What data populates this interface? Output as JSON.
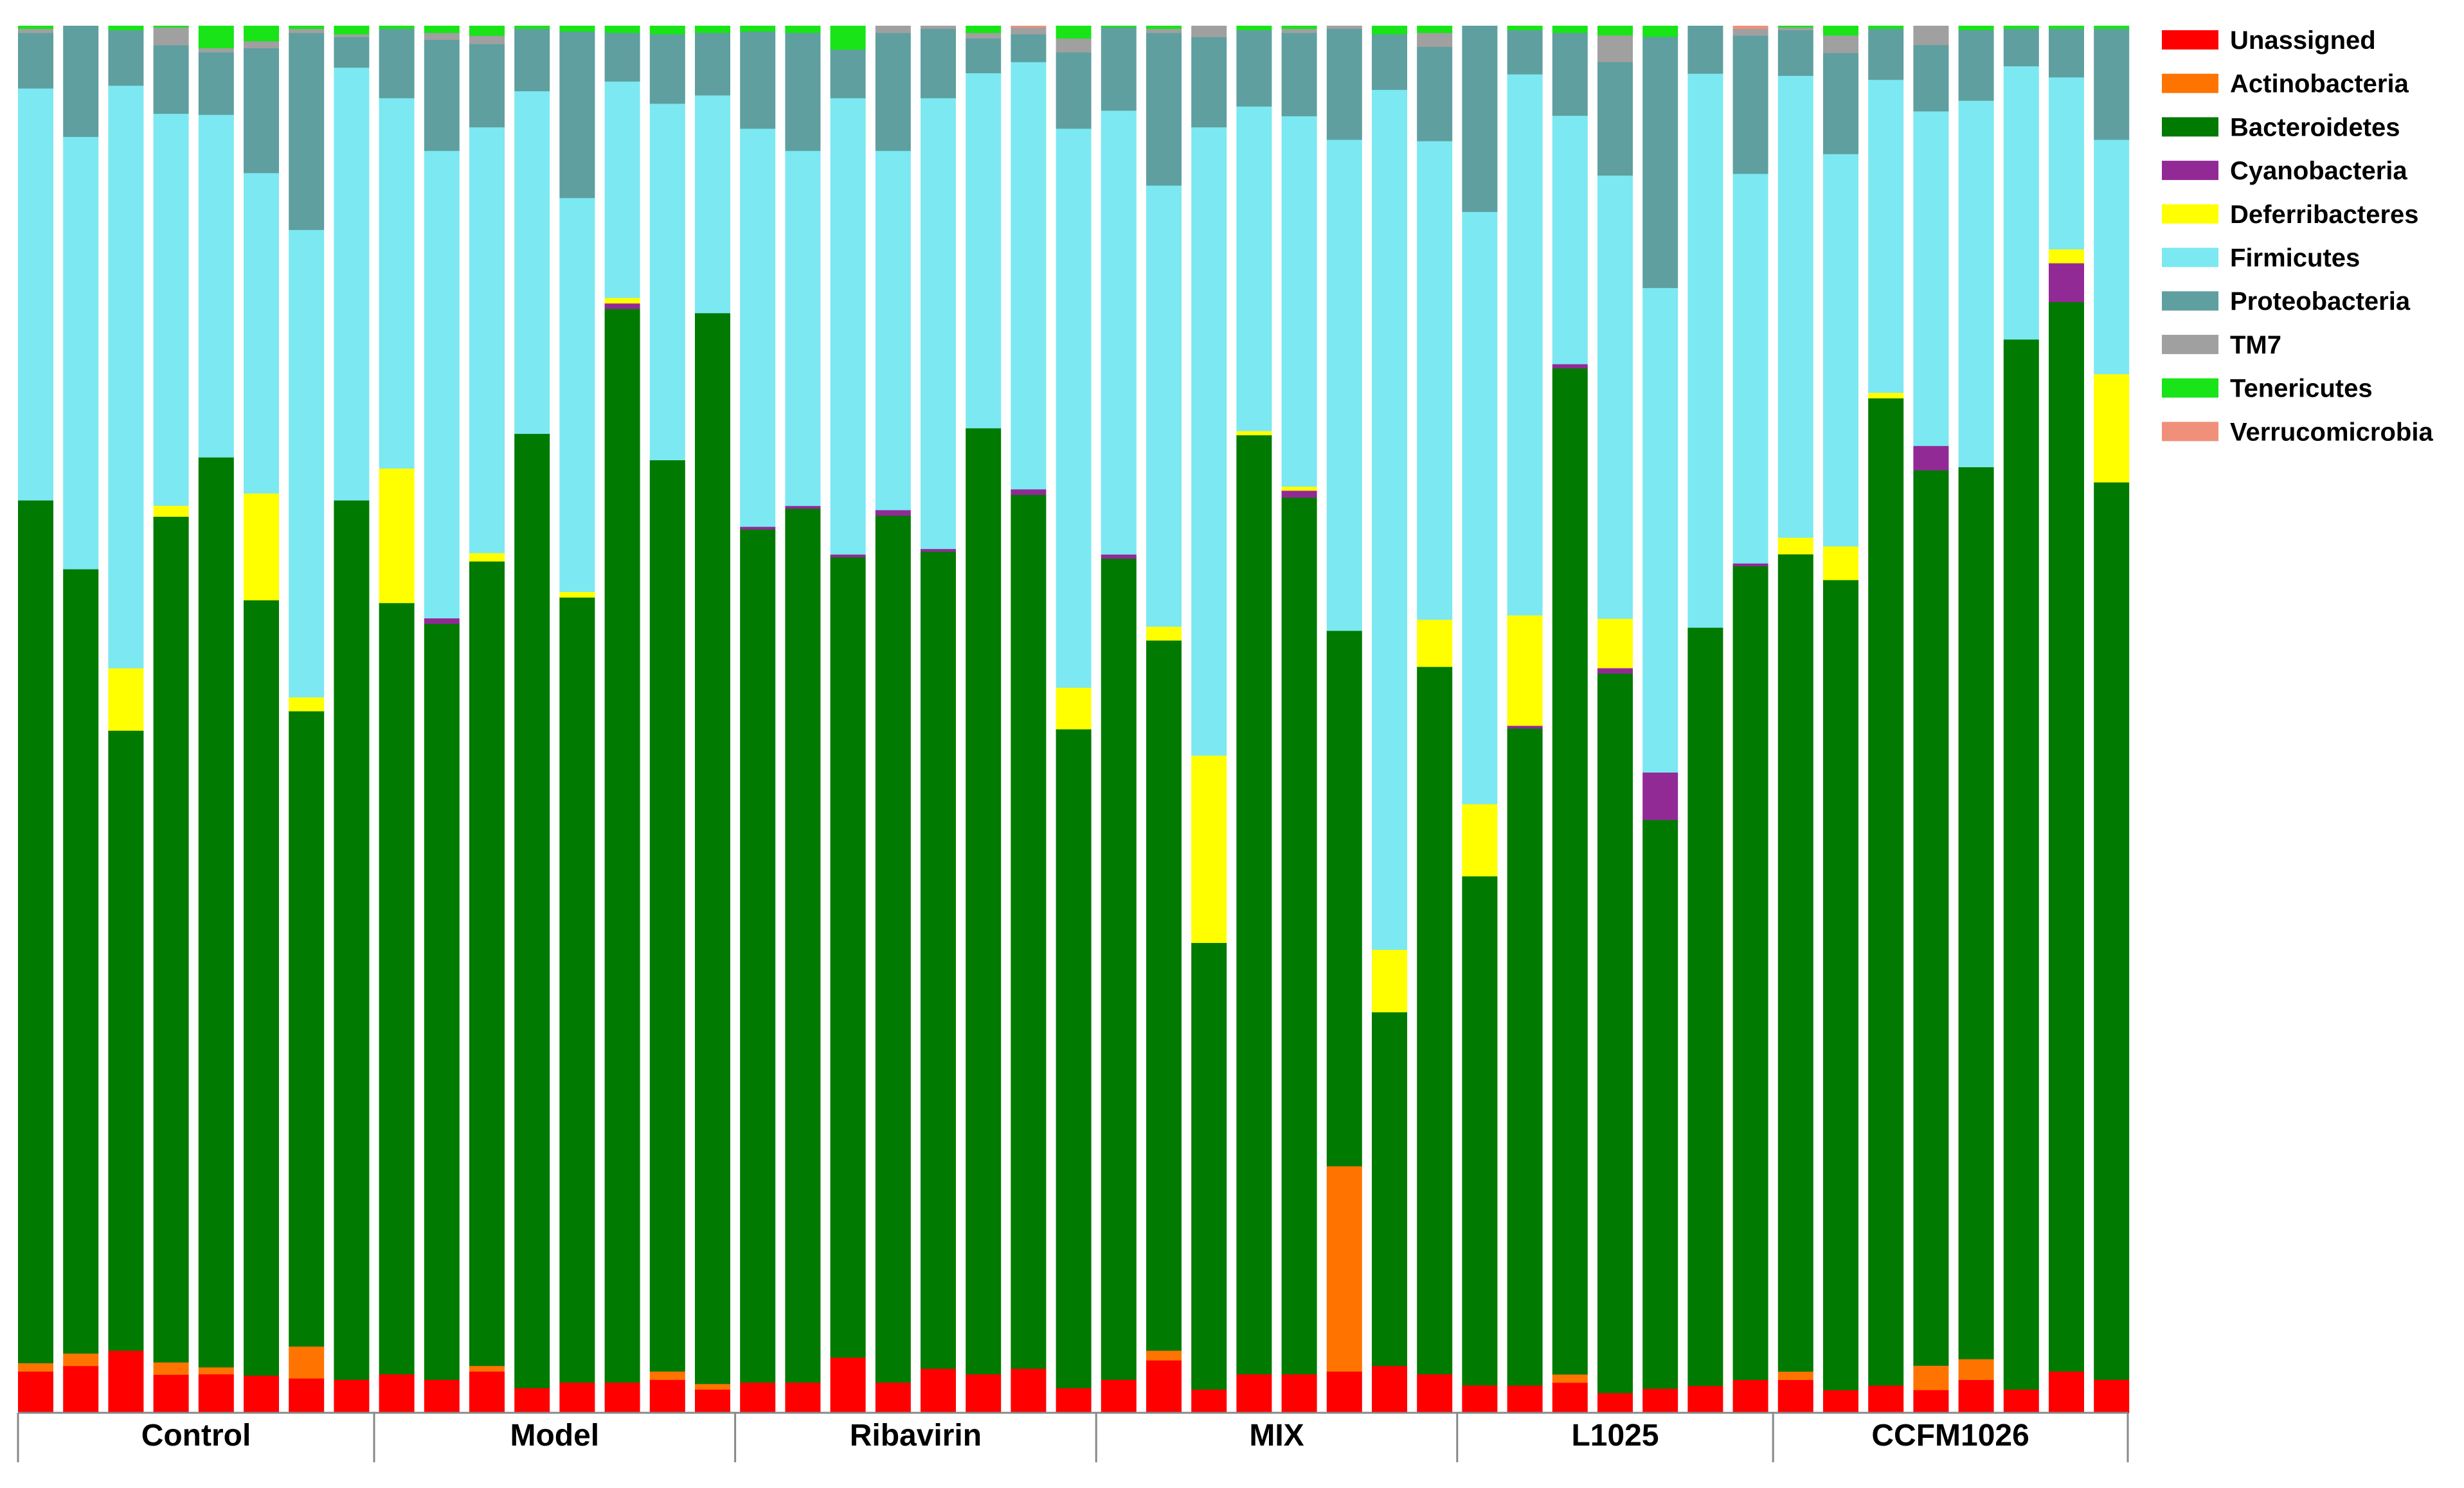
{
  "chart_data": {
    "type": "bar",
    "stacked": true,
    "normalized": true,
    "title": "",
    "xlabel": "",
    "ylabel": "",
    "ylim": [
      0,
      1
    ],
    "legend_position": "right",
    "series": [
      {
        "name": "Unassigned",
        "color": "#ff0000"
      },
      {
        "name": "Actinobacteria",
        "color": "#ff7400"
      },
      {
        "name": "Bacteroidetes",
        "color": "#007a00"
      },
      {
        "name": "Cyanobacteria",
        "color": "#922a96"
      },
      {
        "name": "Deferribacteres",
        "color": "#ffff00"
      },
      {
        "name": "Firmicutes",
        "color": "#7ce8f2"
      },
      {
        "name": "Proteobacteria",
        "color": "#5f9f9f"
      },
      {
        "name": "TM7",
        "color": "#a0a0a0"
      },
      {
        "name": "Tenericutes",
        "color": "#18e418"
      },
      {
        "name": "Verrucomicrobia",
        "color": "#f0907a"
      }
    ],
    "groups": [
      {
        "name": "Control",
        "samples": [
          [
            0.03,
            0.006,
            0.622,
            0,
            0,
            0.297,
            0.04,
            0.003,
            0.002,
            0
          ],
          [
            0.034,
            0.009,
            0.566,
            0,
            0,
            0.312,
            0.08,
            0,
            0,
            0
          ],
          [
            0.045,
            0,
            0.447,
            0,
            0.045,
            0.42,
            0.04,
            0,
            0.003,
            0
          ],
          [
            0.028,
            0.009,
            0.617,
            0,
            0.008,
            0.286,
            0.05,
            0.013,
            0.001,
            0
          ],
          [
            0.028,
            0.005,
            0.656,
            0,
            0,
            0.247,
            0.045,
            0.003,
            0.016,
            0
          ],
          [
            0.027,
            0,
            0.559,
            0,
            0.077,
            0.231,
            0.09,
            0.005,
            0.011,
            0
          ],
          [
            0.025,
            0.023,
            0.458,
            0,
            0.01,
            0.337,
            0.142,
            0.003,
            0.002,
            0
          ],
          [
            0.024,
            0,
            0.634,
            0,
            0,
            0.312,
            0.022,
            0.002,
            0.006,
            0
          ]
        ]
      },
      {
        "name": "Model",
        "samples": [
          [
            0.028,
            0,
            0.556,
            0,
            0.097,
            0.267,
            0.05,
            0,
            0.002,
            0
          ],
          [
            0.024,
            0,
            0.545,
            0.004,
            0,
            0.337,
            0.08,
            0.005,
            0.005,
            0
          ],
          [
            0.03,
            0.004,
            0.58,
            0,
            0.006,
            0.307,
            0.06,
            0.006,
            0.007,
            0
          ],
          [
            0.018,
            0,
            0.688,
            0,
            0,
            0.247,
            0.045,
            0,
            0.002,
            0
          ],
          [
            0.022,
            0,
            0.566,
            0,
            0.004,
            0.284,
            0.12,
            0,
            0.004,
            0
          ],
          [
            0.022,
            0,
            0.774,
            0.004,
            0.004,
            0.156,
            0.035,
            0,
            0.005,
            0
          ],
          [
            0.024,
            0.006,
            0.657,
            0,
            0,
            0.257,
            0.05,
            0,
            0.006,
            0
          ],
          [
            0.017,
            0.004,
            0.772,
            0,
            0,
            0.157,
            0.045,
            0,
            0.005,
            0
          ]
        ]
      },
      {
        "name": "Ribavirin",
        "samples": [
          [
            0.022,
            0,
            0.615,
            0.002,
            0,
            0.287,
            0.07,
            0,
            0.004,
            0
          ],
          [
            0.022,
            0,
            0.63,
            0.002,
            0,
            0.256,
            0.085,
            0,
            0.005,
            0
          ],
          [
            0.04,
            0,
            0.577,
            0.002,
            0,
            0.329,
            0.035,
            0,
            0.017,
            0
          ],
          [
            0.022,
            0,
            0.625,
            0.004,
            0,
            0.259,
            0.085,
            0.005,
            0,
            0
          ],
          [
            0.032,
            0,
            0.589,
            0.002,
            0,
            0.325,
            0.05,
            0.002,
            0,
            0
          ],
          [
            0.028,
            0,
            0.682,
            0,
            0,
            0.256,
            0.025,
            0.004,
            0.005,
            0
          ],
          [
            0.032,
            0,
            0.63,
            0.004,
            0,
            0.308,
            0.02,
            0.005,
            0,
            0.001
          ],
          [
            0.018,
            0,
            0.475,
            0,
            0.03,
            0.403,
            0.055,
            0.01,
            0.009,
            0
          ]
        ]
      },
      {
        "name": "MIX",
        "samples": [
          [
            0.024,
            0,
            0.592,
            0.003,
            0,
            0.32,
            0.06,
            0,
            0.001,
            0
          ],
          [
            0.038,
            0.007,
            0.512,
            0,
            0.01,
            0.318,
            0.11,
            0.003,
            0.002,
            0
          ],
          [
            0.017,
            0,
            0.322,
            0,
            0.135,
            0.453,
            0.065,
            0.008,
            0,
            0
          ],
          [
            0.028,
            0,
            0.677,
            0,
            0.003,
            0.234,
            0.055,
            0,
            0.003,
            0
          ],
          [
            0.028,
            0,
            0.632,
            0.005,
            0.003,
            0.267,
            0.06,
            0.003,
            0.002,
            0
          ],
          [
            0.03,
            0.148,
            0.386,
            0,
            0,
            0.354,
            0.08,
            0.002,
            0,
            0
          ],
          [
            0.034,
            0,
            0.255,
            0,
            0.045,
            0.62,
            0.04,
            0,
            0.006,
            0
          ],
          [
            0.028,
            0,
            0.51,
            0,
            0.034,
            0.345,
            0.068,
            0.01,
            0.005,
            0
          ]
        ]
      },
      {
        "name": "L1025",
        "samples": [
          [
            0.02,
            0,
            0.367,
            0,
            0.052,
            0.427,
            0.134,
            0,
            0,
            0
          ],
          [
            0.02,
            0,
            0.476,
            0.002,
            0.08,
            0.392,
            0.032,
            0,
            0.003,
            0
          ],
          [
            0.022,
            0.006,
            0.729,
            0.003,
            0,
            0.18,
            0.06,
            0,
            0.005,
            0
          ],
          [
            0.015,
            0,
            0.539,
            0.004,
            0.037,
            0.332,
            0.085,
            0.02,
            0.007,
            0
          ],
          [
            0.018,
            0,
            0.419,
            0.035,
            0,
            0.357,
            0.185,
            0,
            0.008,
            0
          ],
          [
            0.02,
            0,
            0.557,
            0,
            0,
            0.407,
            0.035,
            0,
            0,
            0
          ],
          [
            0.024,
            0,
            0.589,
            0.002,
            0,
            0.282,
            0.1,
            0.005,
            0,
            0.002
          ]
        ]
      },
      {
        "name": "CCFM1026",
        "samples": [
          [
            0.024,
            0.006,
            0.591,
            0,
            0.012,
            0.334,
            0.033,
            0.002,
            0.001,
            0
          ],
          [
            0.017,
            0,
            0.601,
            0,
            0.025,
            0.291,
            0.075,
            0.013,
            0.007,
            0
          ],
          [
            0.02,
            0,
            0.716,
            0,
            0.004,
            0.227,
            0.037,
            0,
            0.002,
            0
          ],
          [
            0.017,
            0.018,
            0.661,
            0.018,
            0,
            0.247,
            0.049,
            0.014,
            0,
            0
          ],
          [
            0.024,
            0.015,
            0.645,
            0,
            0,
            0.265,
            0.051,
            0,
            0.003,
            0
          ],
          [
            0.017,
            0,
            0.757,
            0,
            0,
            0.197,
            0.027,
            0,
            0.002,
            0
          ],
          [
            0.03,
            0,
            0.771,
            0.028,
            0.01,
            0.124,
            0.035,
            0,
            0.002,
            0
          ],
          [
            0.024,
            0,
            0.647,
            0,
            0.078,
            0.169,
            0.08,
            0,
            0.002,
            0
          ]
        ]
      }
    ]
  }
}
